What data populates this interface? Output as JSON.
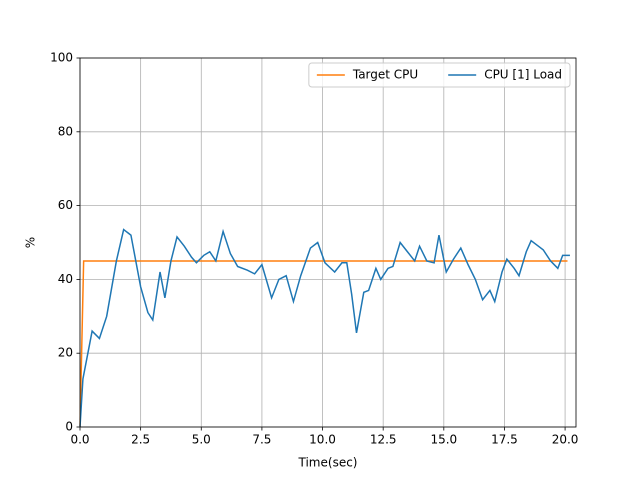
{
  "chart_data": {
    "type": "line",
    "x_label": "Time(sec)",
    "y_label": "%",
    "xlim": [
      0,
      20.45
    ],
    "ylim": [
      0,
      100
    ],
    "xticks": [
      {
        "value": 0,
        "label": "0.0"
      },
      2.5,
      {
        "value": 5,
        "label": "5.0"
      },
      7.5,
      {
        "value": 10,
        "label": "10.0"
      },
      12.5,
      {
        "value": 15,
        "label": "15.0"
      },
      17.5,
      {
        "value": 20,
        "label": "20.0"
      }
    ],
    "yticks": [
      0,
      20,
      40,
      60,
      80,
      100
    ],
    "grid": true,
    "legend": "upper right",
    "series": [
      {
        "name": "Target CPU",
        "color": "#ff7f0e",
        "x": [
          0,
          0.15,
          20.1
        ],
        "values": [
          0,
          45,
          45
        ]
      },
      {
        "name": "CPU [1] Load",
        "color": "#1f77b4",
        "x": [
          0,
          0.12,
          0.5,
          0.8,
          1.1,
          1.5,
          1.8,
          2.1,
          2.5,
          2.8,
          3.0,
          3.3,
          3.5,
          3.75,
          4.0,
          4.3,
          4.6,
          4.8,
          5.1,
          5.35,
          5.6,
          5.9,
          6.2,
          6.5,
          6.9,
          7.2,
          7.5,
          7.9,
          8.2,
          8.5,
          8.8,
          9.1,
          9.5,
          9.8,
          10.1,
          10.5,
          10.8,
          11.0,
          11.2,
          11.4,
          11.7,
          11.9,
          12.2,
          12.4,
          12.7,
          12.9,
          13.2,
          13.5,
          13.8,
          14.0,
          14.3,
          14.6,
          14.8,
          15.1,
          15.4,
          15.7,
          16.0,
          16.3,
          16.6,
          16.9,
          17.1,
          17.4,
          17.6,
          17.9,
          18.1,
          18.4,
          18.6,
          18.9,
          19.1,
          19.4,
          19.7,
          19.9,
          20.2
        ],
        "values": [
          0,
          13,
          26,
          24,
          30,
          45,
          53.5,
          52,
          38,
          31,
          29,
          42,
          35,
          45,
          51.5,
          49,
          46,
          44.5,
          46.5,
          47.5,
          45,
          53,
          47,
          43.5,
          42.5,
          41.5,
          44,
          35,
          40,
          41,
          34,
          41,
          48.5,
          50,
          44.5,
          42,
          44.5,
          44.5,
          36,
          25.5,
          36.5,
          37,
          43,
          40,
          43,
          43.5,
          50,
          47.5,
          45,
          49,
          45,
          44.5,
          52,
          42,
          45.5,
          48.5,
          44,
          40,
          34.5,
          37,
          34,
          42,
          45.5,
          43,
          41,
          47.5,
          50.5,
          49,
          48,
          45,
          43,
          46.5,
          46.5
        ]
      }
    ]
  }
}
